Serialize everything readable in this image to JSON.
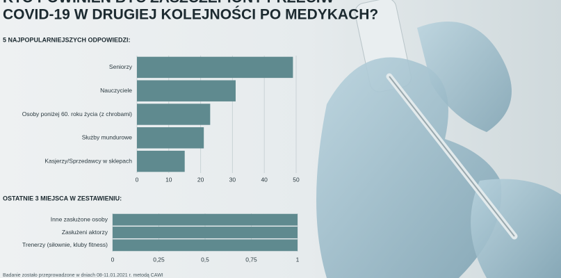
{
  "title": [
    "KTO POWINIEN BYĆ ZASZCZEPIONY PRZECIW",
    "COVID-19 W DRUGIEJ KOLEJNOŚCI PO MEDYKACH?"
  ],
  "note": "Badanie zostało przeprowadzone w dniach 08-11.01.2021 r. metodą CAWI",
  "chart_data": [
    {
      "type": "bar",
      "orientation": "horizontal",
      "subtitle": "5 NAJPOPULARNIEJSZYCH ODPOWIEDZI:",
      "categories": [
        "Seniorzy",
        "Nauczyciele",
        "Osoby poniżej 60. roku życia (z chrobami)",
        "Służby mundurowe",
        "Kasjerzy/Sprzedawcy w sklepach"
      ],
      "values": [
        49,
        31,
        23,
        21,
        15
      ],
      "color": "#5f8a8f",
      "xlim": [
        0,
        50
      ],
      "xticks": [
        0,
        10,
        20,
        30,
        40,
        50
      ],
      "grid": true
    },
    {
      "type": "bar",
      "orientation": "horizontal",
      "subtitle": "OSTATNIE 3 MIEJSCA W ZESTAWIENIU:",
      "categories": [
        "Inne zasłużone osoby",
        "Zasłużeni aktorzy",
        "Trenerzy (siłownie, kluby fitness)"
      ],
      "values": [
        1,
        1,
        1
      ],
      "color": "#5f8a8f",
      "xlim": [
        0,
        1
      ],
      "xticks": [
        0,
        {
          "value": 0.25,
          "label": "0,25"
        },
        {
          "value": 0.5,
          "label": "0,5"
        },
        {
          "value": 0.75,
          "label": "0,75"
        },
        1
      ],
      "grid": true
    }
  ]
}
